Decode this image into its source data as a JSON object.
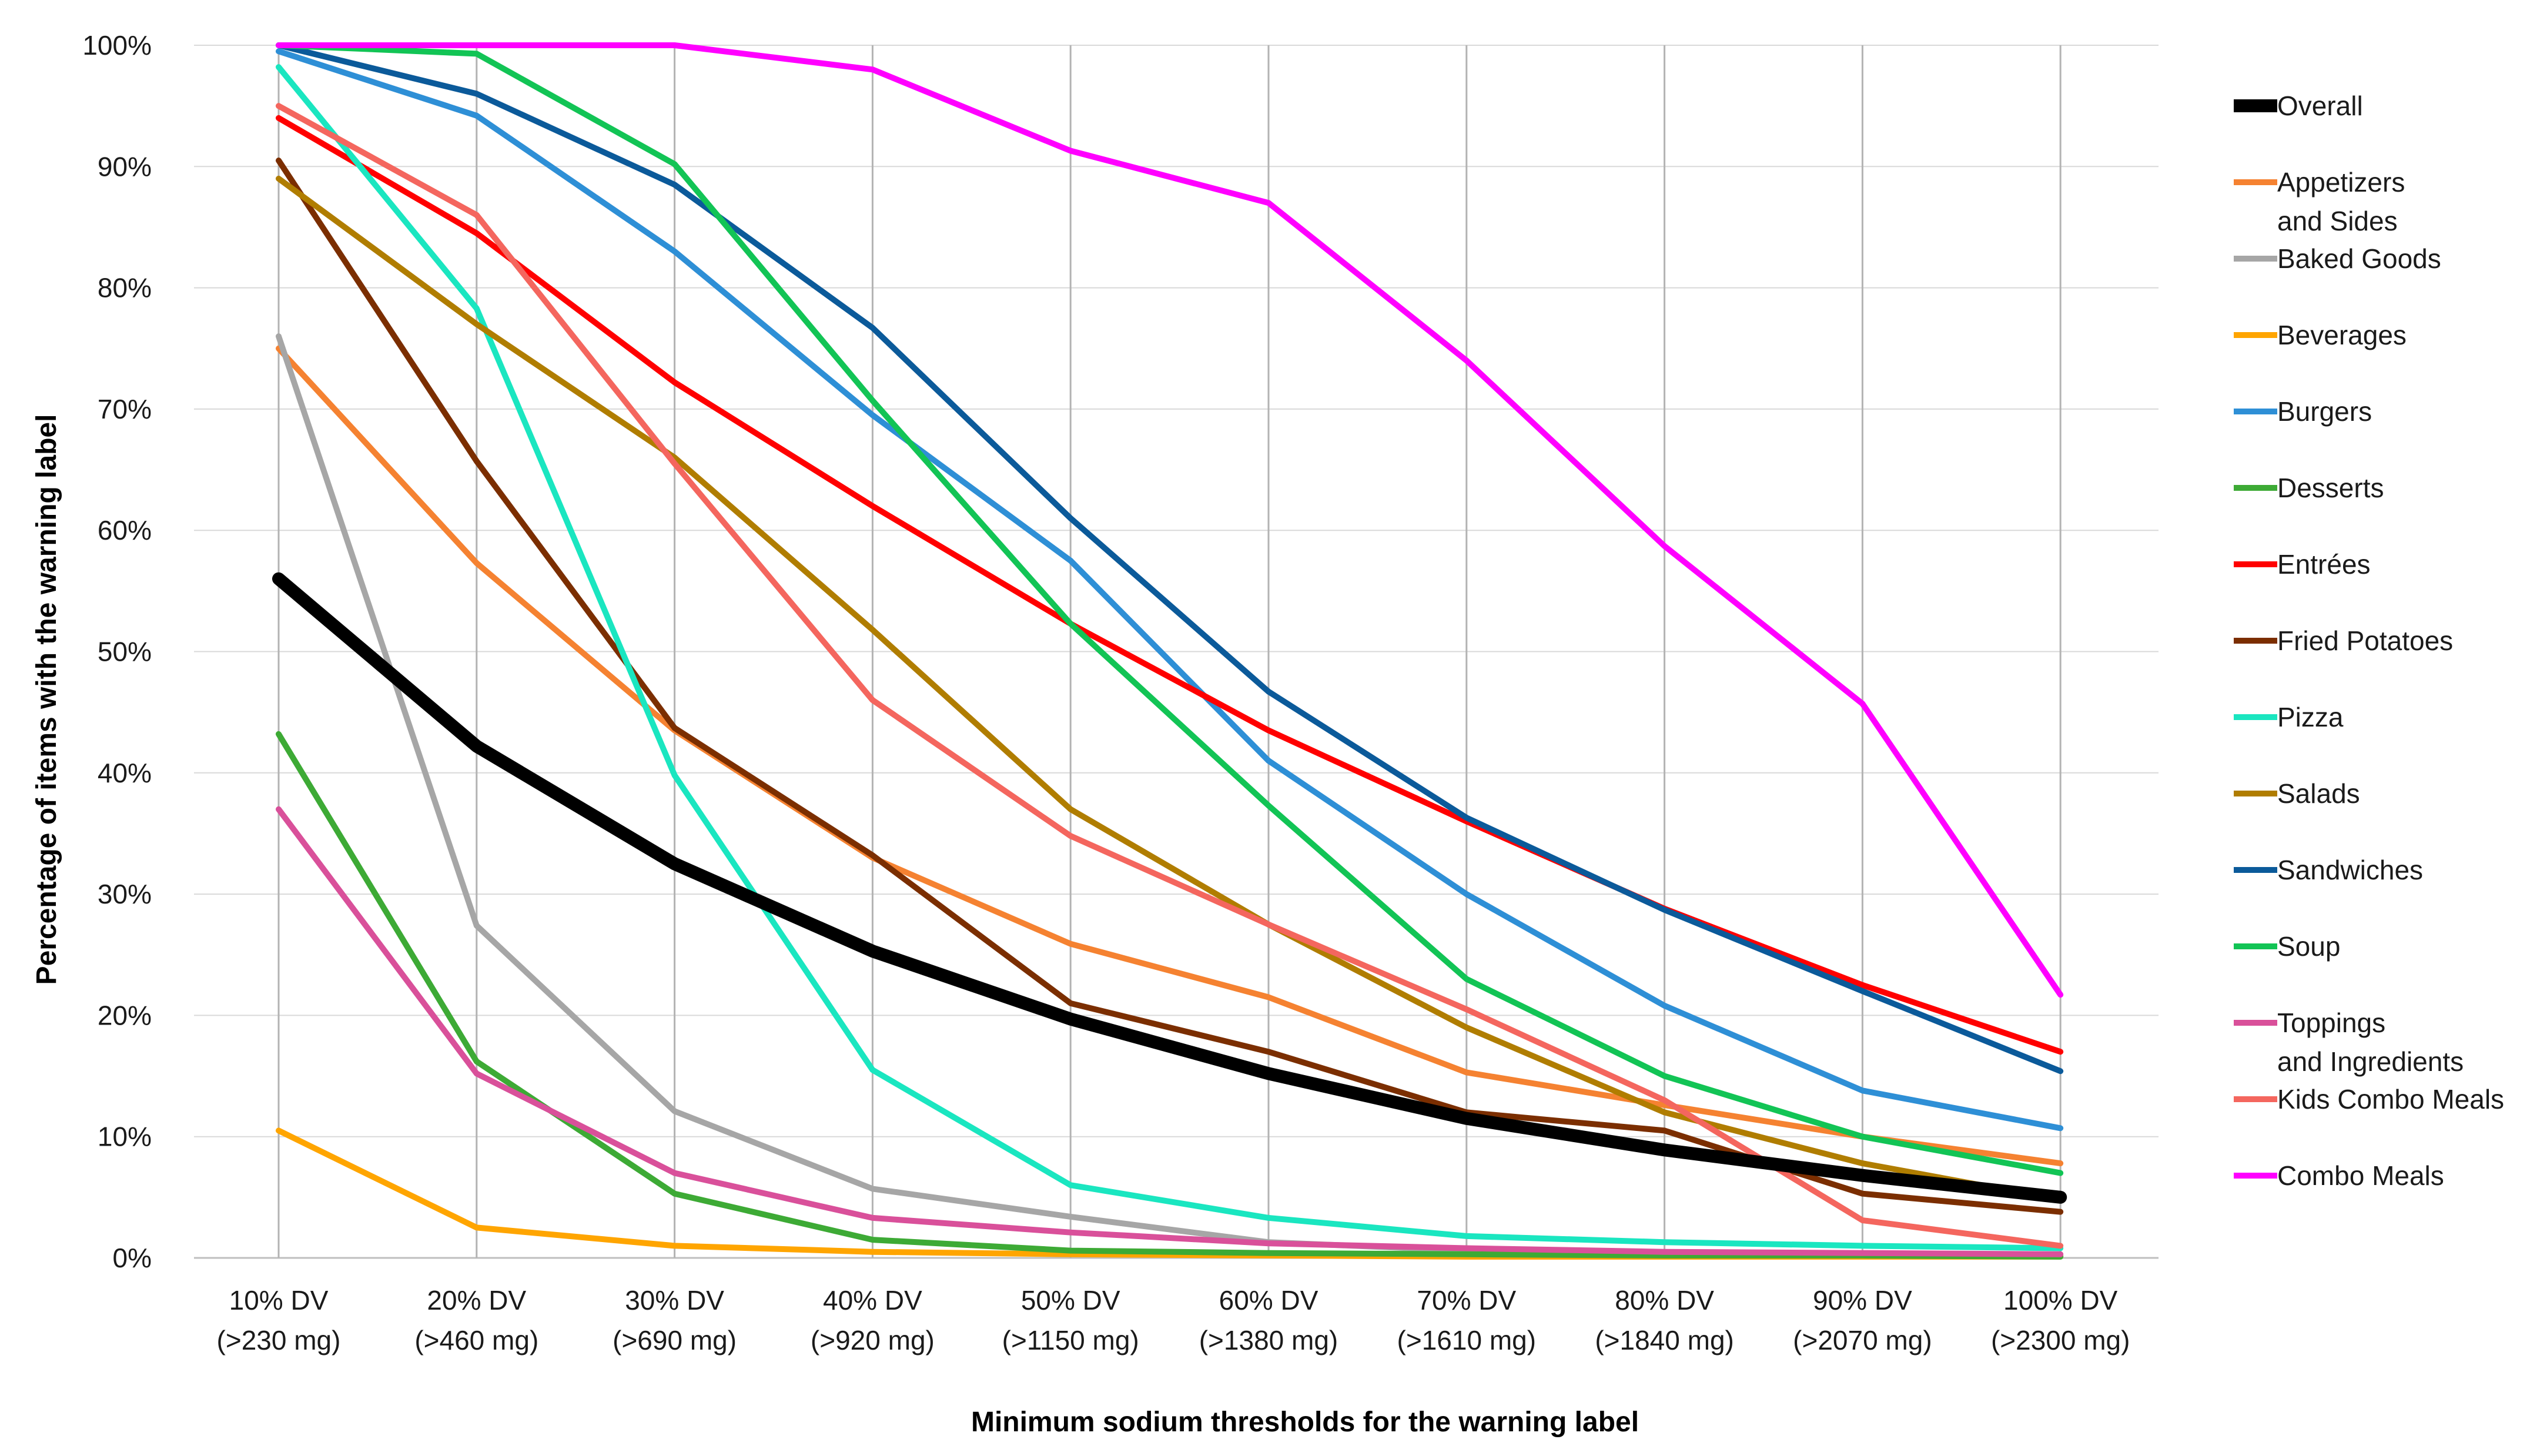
{
  "chart_data": {
    "type": "line",
    "title": "",
    "xlabel": "Minimum sodium thresholds for the warning label",
    "ylabel": "Percentage of items with the warning label",
    "categories": [
      [
        "10% DV",
        "(>230 mg)"
      ],
      [
        "20% DV",
        "(>460 mg)"
      ],
      [
        "30% DV",
        "(>690 mg)"
      ],
      [
        "40% DV",
        "(>920 mg)"
      ],
      [
        "50% DV",
        "(>1150 mg)"
      ],
      [
        "60% DV",
        "(>1380 mg)"
      ],
      [
        "70% DV",
        "(>1610 mg)"
      ],
      [
        "80% DV",
        "(>1840 mg)"
      ],
      [
        "90% DV",
        "(>2070 mg)"
      ],
      [
        "100% DV",
        "(>2300 mg)"
      ]
    ],
    "ylim": [
      0,
      100
    ],
    "yticks": [
      0,
      10,
      20,
      30,
      40,
      50,
      60,
      70,
      80,
      90,
      100
    ],
    "ytick_suffix": "%",
    "grid": "vertical gridlines at categories; horizontal gridlines at y ticks",
    "legend_position": "right",
    "series": [
      {
        "name": "Overall",
        "label_lines": [
          "Overall"
        ],
        "color": "#000000",
        "emphasis": true,
        "values": [
          56,
          42.2,
          32.5,
          25.3,
          19.7,
          15.2,
          11.5,
          8.9,
          6.8,
          5.0
        ]
      },
      {
        "name": "Appetizers and Sides",
        "label_lines": [
          "Appetizers",
          "and Sides"
        ],
        "color": "#F58231",
        "values": [
          75,
          57.3,
          43.5,
          33.0,
          25.9,
          21.5,
          15.3,
          12.6,
          10.0,
          7.8
        ]
      },
      {
        "name": "Baked Goods",
        "label_lines": [
          "Baked Goods"
        ],
        "color": "#A6A6A6",
        "values": [
          76,
          27.4,
          12.1,
          5.7,
          3.4,
          1.3,
          0.6,
          0.4,
          0.3,
          0.2
        ]
      },
      {
        "name": "Beverages",
        "label_lines": [
          "Beverages"
        ],
        "color": "#FFA500",
        "values": [
          10.5,
          2.5,
          1.0,
          0.5,
          0.3,
          0.2,
          0.1,
          0.1,
          0.1,
          0.1
        ]
      },
      {
        "name": "Burgers",
        "label_lines": [
          "Burgers"
        ],
        "color": "#2E8FD6",
        "values": [
          99.5,
          94.2,
          83.0,
          69.5,
          57.5,
          41.0,
          30.0,
          20.8,
          13.8,
          10.7
        ]
      },
      {
        "name": "Desserts",
        "label_lines": [
          "Desserts"
        ],
        "color": "#3DAA35",
        "values": [
          43.2,
          16.2,
          5.3,
          1.5,
          0.6,
          0.4,
          0.3,
          0.2,
          0.2,
          0.1
        ]
      },
      {
        "name": "Entrées",
        "label_lines": [
          "Entrées"
        ],
        "color": "#FF0000",
        "values": [
          94,
          84.5,
          72.2,
          62.0,
          52.3,
          43.5,
          36.0,
          28.8,
          22.5,
          17.0
        ]
      },
      {
        "name": "Fried Potatoes",
        "label_lines": [
          "Fried Potatoes"
        ],
        "color": "#7B2E00",
        "values": [
          90.5,
          65.7,
          43.7,
          33.2,
          21.0,
          17.0,
          12.0,
          10.5,
          5.3,
          3.8
        ]
      },
      {
        "name": "Pizza",
        "label_lines": [
          "Pizza"
        ],
        "color": "#1AE6C0",
        "values": [
          98.2,
          78.3,
          39.8,
          15.5,
          6.0,
          3.3,
          1.8,
          1.3,
          1.0,
          0.8
        ]
      },
      {
        "name": "Salads",
        "label_lines": [
          "Salads"
        ],
        "color": "#B07D00",
        "values": [
          89,
          77.0,
          66.0,
          51.8,
          37.0,
          27.5,
          19.0,
          12.0,
          7.8,
          4.8
        ]
      },
      {
        "name": "Sandwiches",
        "label_lines": [
          "Sandwiches"
        ],
        "color": "#0B5A9A",
        "values": [
          100,
          96.0,
          88.5,
          76.7,
          61.0,
          46.7,
          36.3,
          28.7,
          22.0,
          15.4
        ]
      },
      {
        "name": "Soup",
        "label_lines": [
          "Soup"
        ],
        "color": "#12C455",
        "values": [
          100,
          99.3,
          90.2,
          70.7,
          52.3,
          37.3,
          23.0,
          15.0,
          10.0,
          7.0
        ]
      },
      {
        "name": "Toppings and Ingredients",
        "label_lines": [
          "Toppings",
          "and Ingredients"
        ],
        "color": "#D9509A",
        "values": [
          37,
          15.2,
          7.0,
          3.3,
          2.1,
          1.2,
          0.8,
          0.5,
          0.4,
          0.3
        ]
      },
      {
        "name": "Kids Combo Meals",
        "label_lines": [
          "Kids Combo Meals"
        ],
        "color": "#F4665E",
        "values": [
          95,
          86.0,
          65.5,
          46.0,
          34.8,
          27.5,
          20.5,
          13.0,
          3.1,
          1.0
        ]
      },
      {
        "name": "Combo Meals",
        "label_lines": [
          "Combo Meals"
        ],
        "color": "#FF00FF",
        "values": [
          100,
          100,
          100,
          98.0,
          91.3,
          87.0,
          74.0,
          58.7,
          45.7,
          21.7
        ]
      }
    ]
  }
}
